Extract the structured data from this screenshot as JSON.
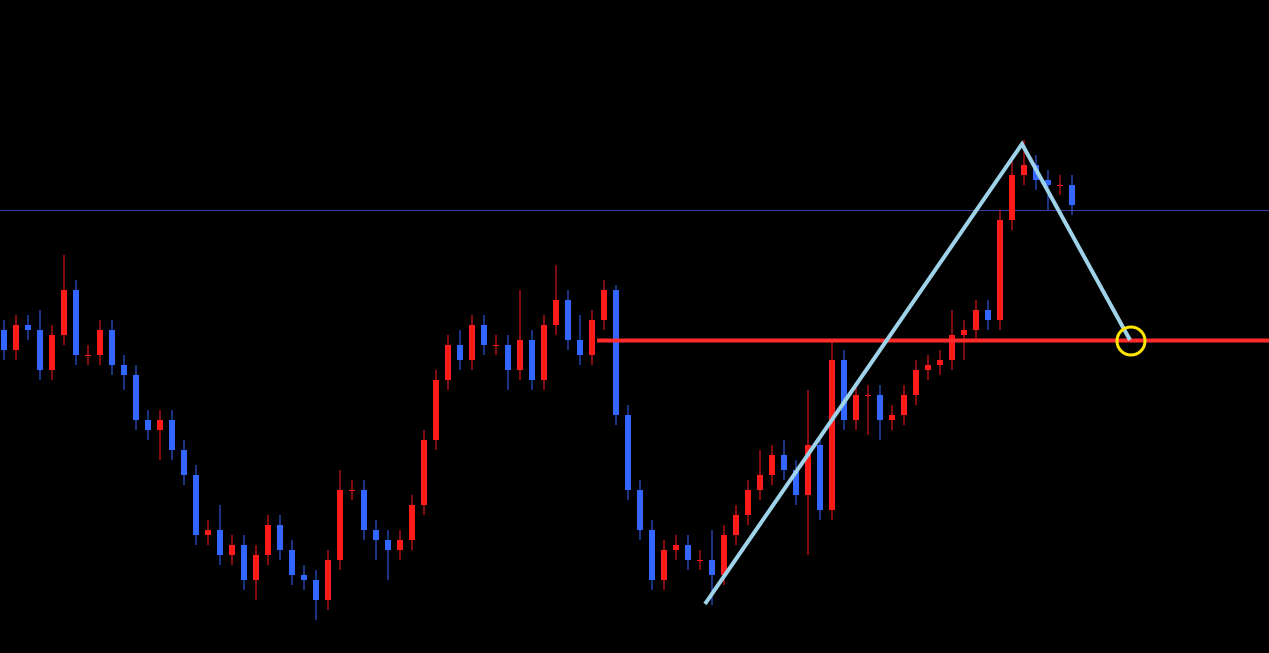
{
  "chart_data": {
    "type": "candlestick",
    "ylim": [
      0,
      653
    ],
    "up_color": "#ff1a1a",
    "down_color": "#3366ff",
    "open": [
      323,
      303,
      328,
      323,
      283,
      318,
      363,
      298,
      298,
      323,
      288,
      278,
      233,
      223,
      233,
      203,
      178,
      118,
      123,
      98,
      108,
      73,
      98,
      128,
      103,
      78,
      73,
      53,
      93,
      163,
      163,
      123,
      113,
      103,
      113,
      148,
      213,
      273,
      308,
      293,
      328,
      308,
      308,
      283,
      313,
      273,
      328,
      353,
      313,
      298,
      333,
      363,
      238,
      163,
      123,
      73,
      103,
      108,
      93,
      93,
      78,
      118,
      138,
      163,
      178,
      198,
      183,
      158,
      208,
      143,
      293,
      233,
      258,
      258,
      233,
      238,
      258,
      283,
      288,
      293,
      318,
      323,
      343,
      333,
      433,
      478,
      488,
      473,
      468,
      468
    ],
    "high": [
      333,
      338,
      338,
      343,
      328,
      398,
      373,
      308,
      333,
      333,
      298,
      288,
      243,
      243,
      243,
      213,
      188,
      133,
      148,
      118,
      118,
      108,
      138,
      138,
      113,
      88,
      83,
      103,
      183,
      173,
      173,
      133,
      123,
      123,
      158,
      223,
      283,
      318,
      323,
      338,
      338,
      318,
      318,
      363,
      323,
      338,
      388,
      363,
      338,
      343,
      373,
      368,
      248,
      173,
      133,
      113,
      118,
      118,
      103,
      123,
      128,
      148,
      173,
      203,
      208,
      213,
      193,
      263,
      218,
      313,
      303,
      268,
      268,
      268,
      248,
      268,
      293,
      298,
      303,
      343,
      333,
      353,
      353,
      443,
      498,
      513,
      498,
      483,
      478,
      478
    ],
    "low": [
      293,
      293,
      313,
      273,
      273,
      308,
      288,
      288,
      288,
      278,
      263,
      223,
      213,
      193,
      193,
      168,
      108,
      108,
      88,
      88,
      63,
      53,
      88,
      93,
      68,
      63,
      33,
      43,
      83,
      153,
      113,
      93,
      73,
      93,
      103,
      138,
      203,
      263,
      283,
      283,
      298,
      298,
      263,
      273,
      263,
      263,
      318,
      303,
      288,
      288,
      323,
      228,
      153,
      113,
      63,
      63,
      93,
      83,
      83,
      48,
      68,
      108,
      128,
      153,
      168,
      173,
      148,
      98,
      133,
      133,
      223,
      223,
      218,
      213,
      223,
      228,
      248,
      273,
      278,
      283,
      293,
      313,
      323,
      323,
      423,
      468,
      463,
      443,
      458,
      438
    ],
    "close": [
      303,
      328,
      323,
      283,
      318,
      363,
      298,
      298,
      323,
      288,
      278,
      233,
      223,
      233,
      203,
      178,
      118,
      123,
      98,
      108,
      73,
      98,
      128,
      103,
      78,
      73,
      53,
      93,
      163,
      163,
      123,
      113,
      103,
      113,
      148,
      213,
      273,
      308,
      293,
      328,
      308,
      308,
      283,
      313,
      273,
      328,
      353,
      313,
      298,
      333,
      363,
      238,
      163,
      123,
      73,
      103,
      108,
      93,
      93,
      78,
      118,
      138,
      163,
      178,
      198,
      183,
      158,
      208,
      143,
      293,
      233,
      258,
      258,
      233,
      238,
      258,
      283,
      288,
      293,
      318,
      323,
      343,
      333,
      433,
      478,
      488,
      473,
      468,
      468,
      448
    ]
  }
}
